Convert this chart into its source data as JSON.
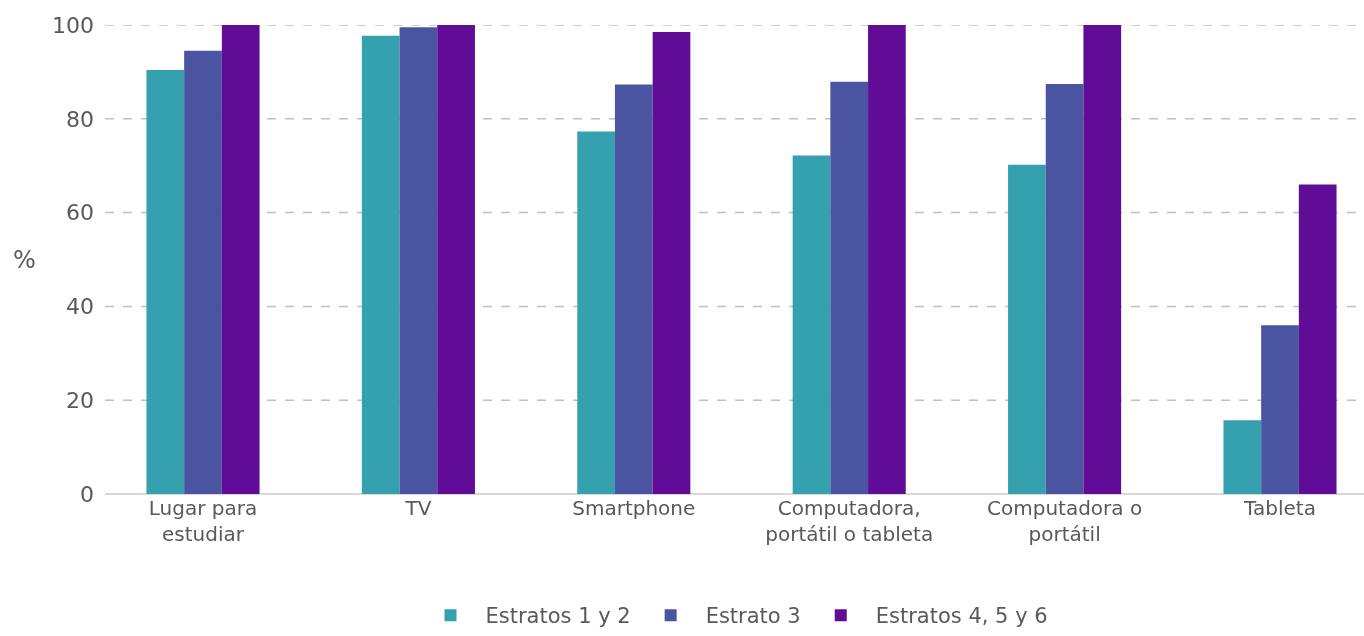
{
  "chart_data": {
    "type": "bar",
    "ylabel": "%",
    "categories": [
      "Lugar para\nestudiar",
      "TV",
      "Smartphone",
      "Computadora,\nportátil o tableta",
      "Computadora o\nportátil",
      "Tableta"
    ],
    "series": [
      {
        "name": "Estratos 1 y 2",
        "color": "#35a0ae",
        "values": [
          90.4,
          97.7,
          77.3,
          72.2,
          70.2,
          15.7
        ]
      },
      {
        "name": "Estrato 3",
        "color": "#4b54a1",
        "values": [
          94.5,
          99.5,
          87.3,
          87.9,
          87.4,
          36.0
        ]
      },
      {
        "name": "Estratos 4, 5 y 6",
        "color": "#610c97",
        "values": [
          100,
          100,
          98.5,
          100,
          100,
          66.0
        ]
      }
    ],
    "ylim": [
      0,
      100
    ],
    "yticks": [
      0,
      20,
      40,
      60,
      80,
      100
    ],
    "grid": "y",
    "legend": "bottom"
  }
}
